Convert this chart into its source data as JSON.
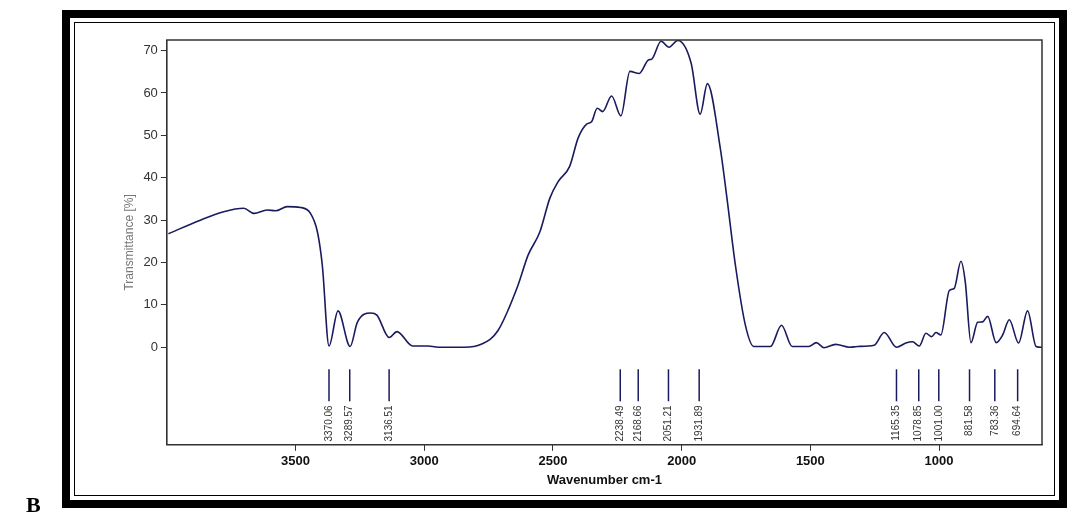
{
  "chart_data": {
    "type": "line",
    "xlabel": "Wavenumber cm-1",
    "ylabel": "Transmittance [%]",
    "xlim": [
      4000,
      600
    ],
    "xticks": [
      3500,
      3000,
      2500,
      2000,
      1500,
      1000
    ],
    "ylim": [
      -23,
      72.5
    ],
    "yticks": [
      0,
      10,
      20,
      30,
      40,
      50,
      60,
      70
    ],
    "grid": false,
    "legend": false,
    "marker": "none",
    "line_style": "solid",
    "series": [
      {
        "color": "#1a1a5e",
        "x": [
          3994,
          3870,
          3779,
          3701,
          3662,
          3610,
          3578,
          3532,
          3481,
          3442,
          3415,
          3396,
          3370,
          3335,
          3288,
          3260,
          3208,
          3184,
          3136,
          3106,
          3045,
          2986,
          2935,
          2844,
          2779,
          2714,
          2636,
          2597,
          2551,
          2512,
          2480,
          2435,
          2402,
          2370,
          2350,
          2328,
          2307,
          2272,
          2236,
          2201,
          2165,
          2129,
          2116,
          2080,
          2049,
          2015,
          1963,
          1928,
          1900,
          1850,
          1824,
          1791,
          1752,
          1720,
          1655,
          1612,
          1571,
          1506,
          1477,
          1447,
          1402,
          1347,
          1317,
          1252,
          1213,
          1165,
          1129,
          1103,
          1077,
          1051,
          1029,
          1012,
          993,
          960,
          941,
          915,
          898,
          876,
          850,
          831,
          811,
          778,
          753,
          727,
          691,
          656,
          623,
          600
        ],
        "values": [
          26.8,
          30.0,
          32.0,
          32.8,
          31.6,
          32.4,
          32.2,
          33.2,
          33.0,
          31.6,
          27.2,
          19.3,
          0.3,
          8.6,
          0.2,
          5.9,
          8.1,
          7.6,
          2.3,
          3.7,
          0.3,
          0.3,
          0,
          0,
          0.7,
          3.9,
          14.6,
          21.7,
          27.2,
          35.2,
          39.1,
          42.7,
          49.4,
          52.6,
          53.2,
          56.4,
          55.6,
          59.3,
          54.6,
          65.1,
          64.6,
          67.8,
          68.0,
          72.2,
          70.8,
          72.4,
          67.0,
          55.0,
          62.2,
          47.0,
          35.2,
          19.3,
          5.1,
          0.2,
          0.2,
          5.2,
          0.2,
          0.2,
          1.1,
          -0.1,
          0.7,
          0,
          0.2,
          0.5,
          3.5,
          0,
          1.0,
          1.3,
          0.3,
          3.3,
          2.5,
          3.5,
          2.9,
          13.4,
          13.9,
          20.3,
          15.4,
          1.1,
          5.9,
          6.0,
          7.3,
          1.1,
          2.9,
          6.5,
          1.0,
          8.6,
          0.2,
          0
        ]
      }
    ],
    "ref_lines": [
      {
        "axis": "x",
        "value": 3370.06,
        "label": "3370.06"
      },
      {
        "axis": "x",
        "value": 3289.57,
        "label": "3289.57"
      },
      {
        "axis": "x",
        "value": 3136.51,
        "label": "3136.51"
      },
      {
        "axis": "x",
        "value": 2238.49,
        "label": "2238.49"
      },
      {
        "axis": "x",
        "value": 2168.66,
        "label": "2168.66"
      },
      {
        "axis": "x",
        "value": 2051.21,
        "label": "2051.21"
      },
      {
        "axis": "x",
        "value": 1931.89,
        "label": "1931.89"
      },
      {
        "axis": "x",
        "value": 1165.35,
        "label": "1165.35"
      },
      {
        "axis": "x",
        "value": 1078.85,
        "label": "1078.85"
      },
      {
        "axis": "x",
        "value": 1001.0,
        "label": "1001.00"
      },
      {
        "axis": "x",
        "value": 881.58,
        "label": "881.58"
      },
      {
        "axis": "x",
        "value": 783.36,
        "label": "783.36"
      },
      {
        "axis": "x",
        "value": 694.64,
        "label": "694.64"
      }
    ],
    "annotations": [
      "B"
    ]
  }
}
